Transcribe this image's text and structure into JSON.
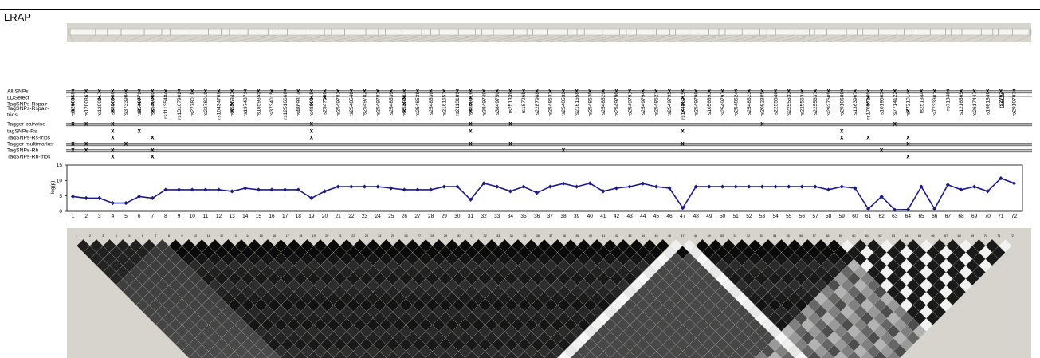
{
  "title": "LRAP",
  "snps": [
    "rs1200358",
    "rs1200361",
    "rs1200617",
    "rs3806936",
    "rs3733904",
    "rs2549779",
    "rs2549780",
    "rs11135484",
    "rs13167902",
    "rs2278018",
    "rs2278019",
    "rs10434709",
    "rs6556942",
    "rs1974871",
    "rs1859355",
    "rs3734015",
    "rs12516666",
    "rs4869314",
    "rs4869315",
    "rs2547650",
    "rs2549781",
    "rs2548540",
    "rs2549782",
    "rs2549783",
    "rs2548539",
    "rs2549784",
    "rs2548538",
    "rs2548536",
    "rs2161657",
    "rs2113189",
    "rs4869316",
    "rs3849749",
    "rs3849750",
    "rs251339",
    "rs187265",
    "rs2287988",
    "rs2548533",
    "rs2548532",
    "rs2161658",
    "rs2548530",
    "rs2548529",
    "rs2549790",
    "rs2549791",
    "rs2549794",
    "rs2548527",
    "rs2549795",
    "rs17486915",
    "rs2549796",
    "rs1056893",
    "rs2549797",
    "rs2548524",
    "rs2548523",
    "rs2082385",
    "rs2255546",
    "rs2255633",
    "rs2255634",
    "rs2255637",
    "rs2927609",
    "rs2910686",
    "rs1363907",
    "rs17087180",
    "rs1019503",
    "rs7714122",
    "rs7721014",
    "rs251344",
    "rs7733301",
    "rs71848",
    "rs1216565",
    "rs2617447",
    "rs1981846",
    "rs2762",
    "rs2910787"
  ],
  "row_labels": [
    "All SNPs",
    "LDSelect",
    "TagSNPs-Rspair",
    "TagSNPs-Rspair-trios",
    "Tagger-pairwise",
    "tagSNPs-Rs",
    "TagSNPs-Rs-trios",
    "Tagger-multimarker",
    "TagSNPs-Rh",
    "TagSNPs-Rh-trios"
  ],
  "mark_char": "x",
  "row_marks": [
    [
      1,
      2,
      3,
      4,
      5,
      6,
      7,
      8,
      9,
      10,
      11,
      12,
      13,
      14,
      15,
      16,
      17,
      18,
      19,
      20,
      21,
      22,
      23,
      24,
      25,
      26,
      27,
      28,
      29,
      30,
      31,
      32,
      33,
      34,
      35,
      36,
      37,
      38,
      39,
      40,
      41,
      42,
      43,
      44,
      45,
      46,
      47,
      48,
      49,
      50,
      51,
      52,
      53,
      54,
      55,
      56,
      57,
      58,
      59,
      60,
      61,
      62,
      63,
      64,
      65,
      66,
      67,
      68,
      69,
      70,
      71,
      72
    ],
    [
      1,
      3,
      4,
      6,
      7,
      19,
      20,
      26,
      31,
      47,
      61
    ],
    [
      1,
      4,
      6,
      7,
      13,
      19,
      26,
      31,
      47,
      61
    ],
    [
      1,
      4,
      6,
      7,
      13,
      26,
      31,
      47,
      64
    ],
    [
      1,
      2,
      4,
      19,
      31,
      34,
      53,
      63
    ],
    [
      4,
      6,
      19,
      31,
      47,
      59
    ],
    [
      4,
      7,
      19,
      59,
      61,
      64
    ],
    [
      1,
      2,
      5,
      31,
      34,
      47,
      64
    ],
    [
      1,
      2,
      4,
      7,
      38,
      62
    ],
    [
      4,
      7,
      64
    ]
  ],
  "chart_data": {
    "type": "line",
    "ylabel": "-log(p)",
    "ylim": [
      0,
      15
    ],
    "yticks": [
      0,
      5,
      10,
      15
    ],
    "x": [
      1,
      2,
      3,
      4,
      5,
      6,
      7,
      8,
      9,
      10,
      11,
      12,
      13,
      14,
      15,
      16,
      17,
      18,
      19,
      20,
      21,
      22,
      23,
      24,
      25,
      26,
      27,
      28,
      29,
      30,
      31,
      32,
      33,
      34,
      35,
      36,
      37,
      38,
      39,
      40,
      41,
      42,
      43,
      44,
      45,
      46,
      47,
      48,
      49,
      50,
      51,
      52,
      53,
      54,
      55,
      56,
      57,
      58,
      59,
      60,
      61,
      62,
      63,
      64,
      65,
      66,
      67,
      68,
      69,
      70,
      71,
      72
    ],
    "values": [
      4.8,
      4.3,
      4.3,
      2.7,
      2.7,
      4.8,
      4.3,
      7.0,
      7.0,
      7.0,
      7.0,
      7.0,
      6.5,
      7.5,
      7.0,
      7.0,
      7.0,
      7.0,
      4.3,
      6.5,
      8.0,
      8.0,
      8.0,
      8.0,
      7.5,
      7.0,
      7.0,
      7.0,
      8.0,
      8.0,
      3.8,
      9.1,
      8.0,
      6.5,
      8.0,
      6.0,
      8.0,
      9.0,
      8.0,
      9.1,
      6.5,
      7.5,
      8.0,
      9.0,
      8.0,
      7.5,
      1.1,
      8.0,
      8.0,
      8.0,
      8.0,
      8.0,
      8.0,
      8.0,
      8.0,
      8.0,
      8.0,
      7.0,
      8.0,
      7.5,
      0.8,
      4.8,
      0.5,
      0.6,
      8.0,
      0.8,
      8.6,
      7.0,
      8.0,
      6.5,
      10.7,
      9.1
    ],
    "line_color": "#1a1a8c",
    "grid": false
  }
}
